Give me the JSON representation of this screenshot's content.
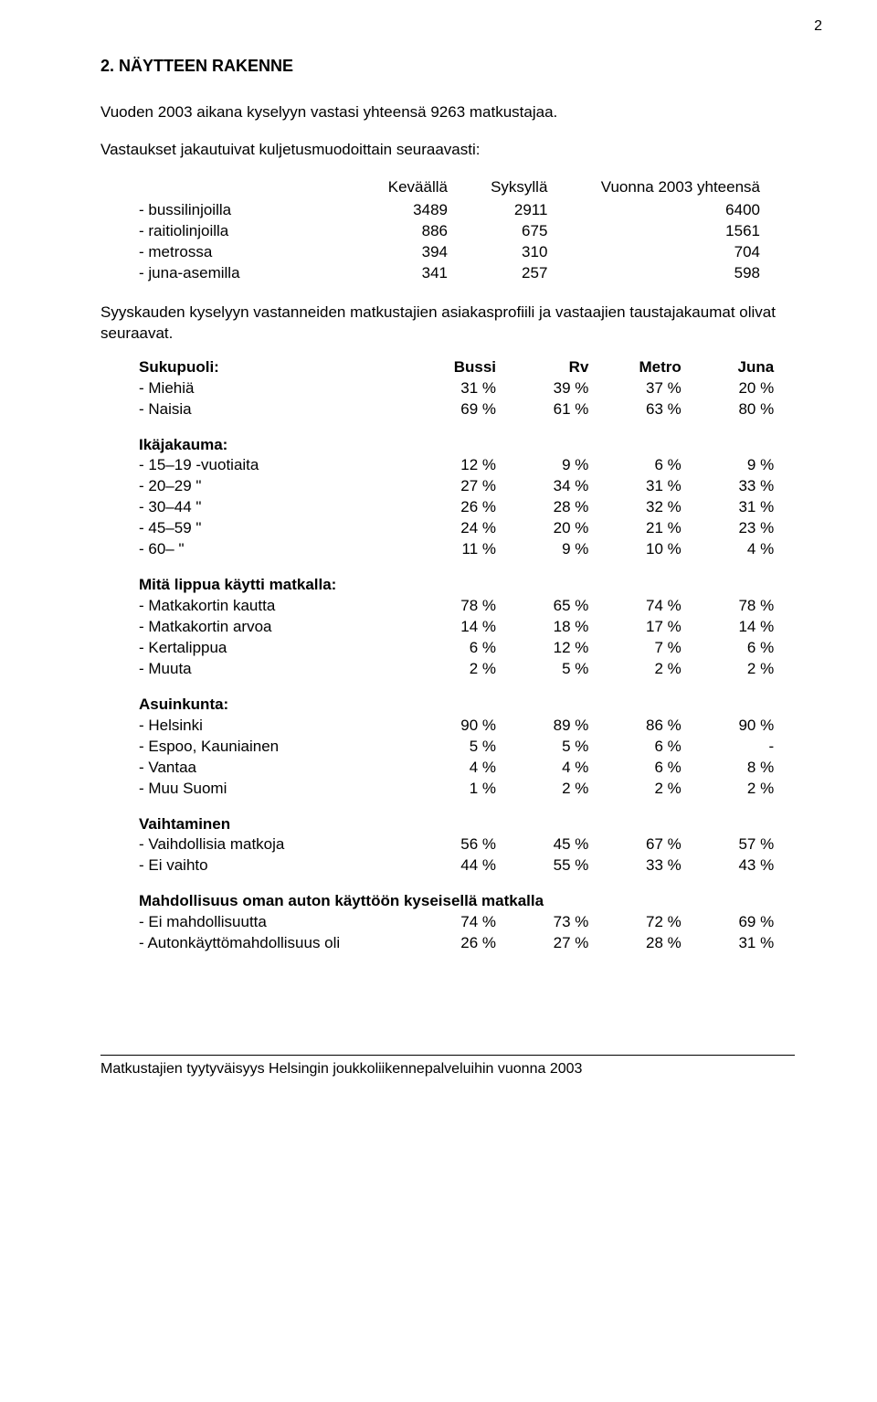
{
  "pageNumber": "2",
  "sectionTitle": "2. NÄYTTEEN RAKENNE",
  "intro1": "Vuoden 2003 aikana kyselyyn vastasi yhteensä 9263 matkustajaa.",
  "intro2": "Vastaukset jakautuivat kuljetusmuodoittain seuraavasti:",
  "modesHeader": {
    "c1": "Keväällä",
    "c2": "Syksyllä",
    "c3": "Vuonna 2003 yhteensä"
  },
  "modes": [
    {
      "label": "- bussilinjoilla",
      "v1": "3489",
      "v2": "2911",
      "v3": "6400"
    },
    {
      "label": "- raitiolinjoilla",
      "v1": "886",
      "v2": "675",
      "v3": "1561"
    },
    {
      "label": "- metrossa",
      "v1": "394",
      "v2": "310",
      "v3": "704"
    },
    {
      "label": "- juna-asemilla",
      "v1": "341",
      "v2": "257",
      "v3": "598"
    }
  ],
  "note": "Syyskauden kyselyyn vastanneiden matkustajien asiakasprofiili ja vastaajien taustajakaumat olivat seuraavat.",
  "colHeaders": {
    "c1": "Bussi",
    "c2": "Rv",
    "c3": "Metro",
    "c4": "Juna"
  },
  "blocks": [
    {
      "title": "Sukupuoli:",
      "rows": [
        {
          "label": "-  Miehiä",
          "v": [
            "31 %",
            "39 %",
            "37 %",
            "20 %"
          ]
        },
        {
          "label": "-  Naisia",
          "v": [
            "69 %",
            "61 %",
            "63 %",
            "80 %"
          ]
        }
      ]
    },
    {
      "title": "Ikäjakauma:",
      "rows": [
        {
          "label": "- 15–19 -vuotiaita",
          "v": [
            "12 %",
            "9 %",
            "6 %",
            "9 %"
          ]
        },
        {
          "label": "- 20–29          \"",
          "v": [
            "27 %",
            "34 %",
            "31 %",
            "33 %"
          ]
        },
        {
          "label": "- 30–44          \"",
          "v": [
            "26 %",
            "28 %",
            "32 %",
            "31 %"
          ]
        },
        {
          "label": "- 45–59          \"",
          "v": [
            "24 %",
            "20 %",
            "21 %",
            "23 %"
          ]
        },
        {
          "label": "- 60–             \"",
          "v": [
            "11 %",
            "9 %",
            "10 %",
            "4 %"
          ]
        }
      ]
    },
    {
      "title": "Mitä lippua käytti matkalla:",
      "rows": [
        {
          "label": "- Matkakortin kautta",
          "v": [
            "78 %",
            "65 %",
            "74 %",
            "78 %"
          ]
        },
        {
          "label": "- Matkakortin arvoa",
          "v": [
            "14 %",
            "18 %",
            "17 %",
            "14 %"
          ]
        },
        {
          "label": "- Kertalippua",
          "v": [
            "6 %",
            "12 %",
            "7 %",
            "6 %"
          ]
        },
        {
          "label": "- Muuta",
          "v": [
            "2 %",
            "5 %",
            "2 %",
            "2 %"
          ]
        }
      ]
    },
    {
      "title": "Asuinkunta:",
      "rows": [
        {
          "label": "- Helsinki",
          "v": [
            "90 %",
            "89 %",
            "86 %",
            "90 %"
          ]
        },
        {
          "label": "- Espoo, Kauniainen",
          "v": [
            "5 %",
            "5 %",
            "6 %",
            "-"
          ]
        },
        {
          "label": "- Vantaa",
          "v": [
            "4 %",
            "4 %",
            "6 %",
            "8 %"
          ]
        },
        {
          "label": "- Muu Suomi",
          "v": [
            "1 %",
            "2 %",
            "2 %",
            "2 %"
          ]
        }
      ]
    },
    {
      "title": "Vaihtaminen",
      "rows": [
        {
          "label": "- Vaihdollisia matkoja",
          "v": [
            "56 %",
            "45 %",
            "67 %",
            "57 %"
          ]
        },
        {
          "label": "- Ei vaihto",
          "v": [
            "44 %",
            "55 %",
            "33 %",
            "43 %"
          ]
        }
      ]
    },
    {
      "title": "Mahdollisuus oman auton käyttöön kyseisellä matkalla",
      "rows": [
        {
          "label": "- Ei mahdollisuutta",
          "v": [
            "74 %",
            "73 %",
            "72 %",
            "69 %"
          ]
        },
        {
          "label": "- Autonkäyttömahdollisuus oli",
          "v": [
            "26 %",
            "27 %",
            "28 %",
            "31 %"
          ]
        }
      ]
    }
  ],
  "footer": "Matkustajien tyytyväisyys Helsingin joukkoliikennepalveluihin vuonna 2003"
}
